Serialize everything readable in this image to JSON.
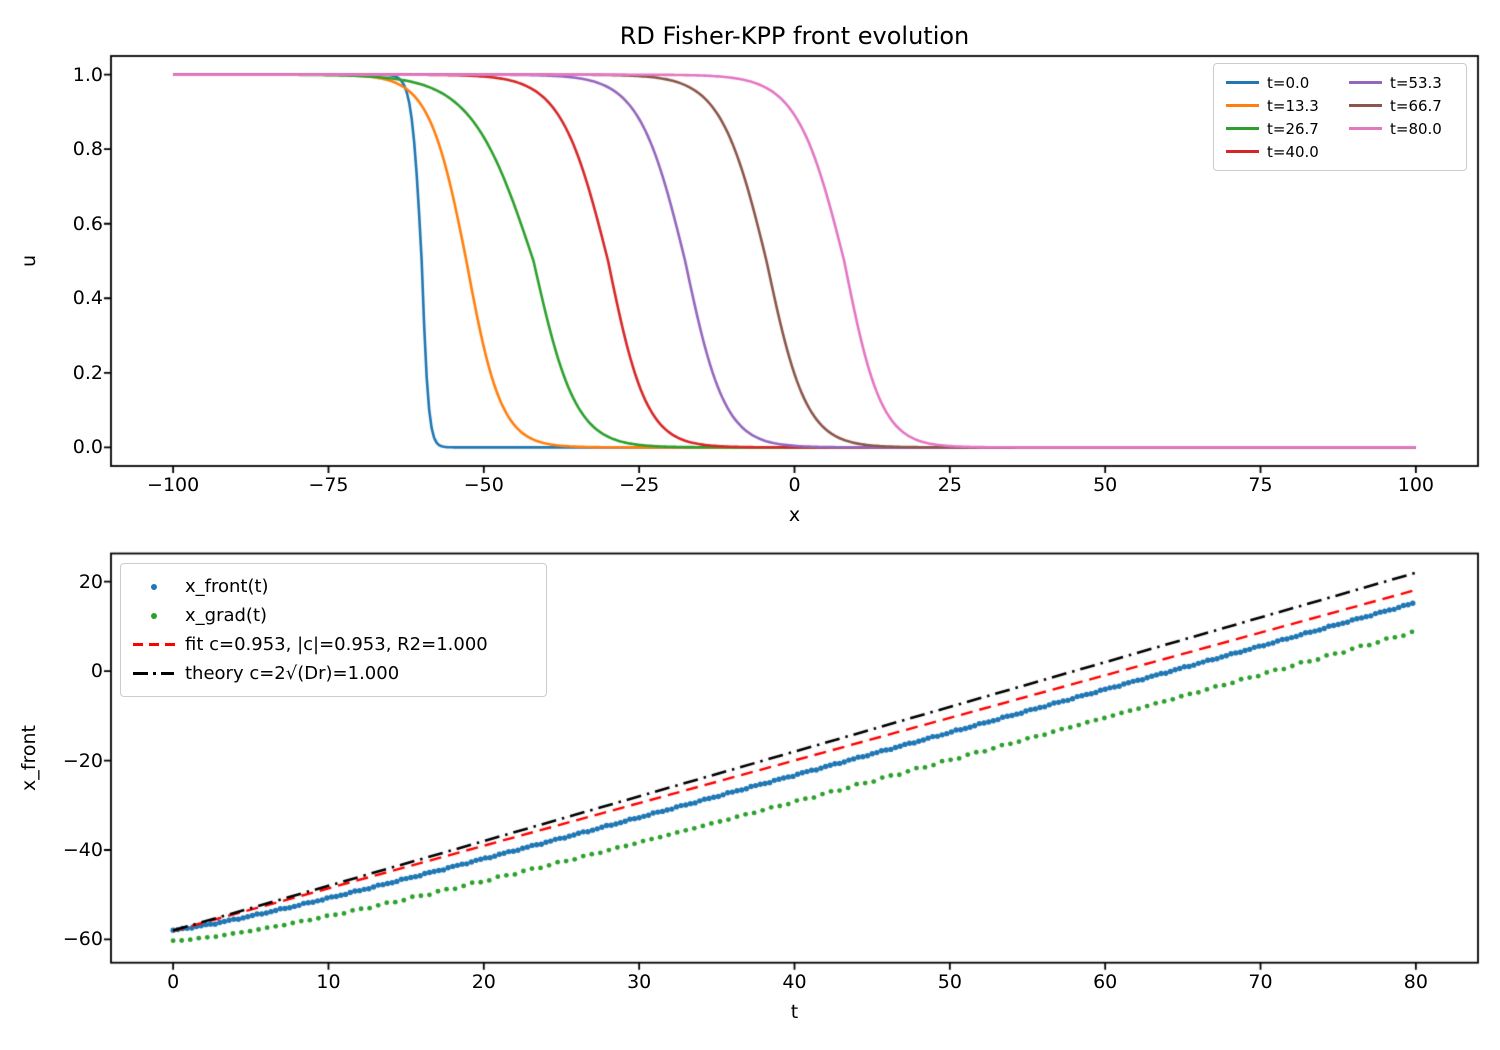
{
  "figure": {
    "background": "#ffffff"
  },
  "chart_data": [
    {
      "type": "line",
      "title": "RD Fisher-KPP front evolution",
      "xlabel": "x",
      "ylabel": "u",
      "xlim": [
        -110,
        110
      ],
      "ylim": [
        -0.05,
        1.05
      ],
      "grid": false,
      "legend_position": "upper right",
      "legend_columns": 2,
      "x_domain": [
        -100,
        100
      ],
      "xtick_values": [
        -100,
        -75,
        -50,
        -25,
        0,
        25,
        50,
        75,
        100
      ],
      "xtick_labels": [
        "−100",
        "−75",
        "−50",
        "−25",
        "0",
        "25",
        "50",
        "75",
        "100"
      ],
      "ytick_values": [
        0.0,
        0.2,
        0.4,
        0.6,
        0.8,
        1.0
      ],
      "ytick_labels": [
        "0.0",
        "0.2",
        "0.4",
        "0.6",
        "0.8",
        "1.0"
      ],
      "curve_model": "u(x) = 1/(1+exp((x-front_center)/width)), width_left used for u>0.5 side, width_right for u<0.5 side",
      "series": [
        {
          "label": "t=0.0",
          "color": "#1f77b4",
          "front_center": -60.0,
          "width_left": 0.8,
          "width_right": 0.55
        },
        {
          "label": "t=13.3",
          "color": "#ff7f0e",
          "front_center": -52.8,
          "width_left": 3.0,
          "width_right": 2.8
        },
        {
          "label": "t=26.7",
          "color": "#2ca02c",
          "front_center": -42.0,
          "width_left": 5.0,
          "width_right": 3.4
        },
        {
          "label": "t=40.0",
          "color": "#d62728",
          "front_center": -30.0,
          "width_left": 3.8,
          "width_right": 3.1
        },
        {
          "label": "t=53.3",
          "color": "#9467bd",
          "front_center": -17.6,
          "width_left": 3.7,
          "width_right": 3.2
        },
        {
          "label": "t=66.7",
          "color": "#8c564b",
          "front_center": -4.5,
          "width_left": 3.7,
          "width_right": 3.2
        },
        {
          "label": "t=80.0",
          "color": "#e377c2",
          "front_center": 8.0,
          "width_left": 3.8,
          "width_right": 3.0
        }
      ]
    },
    {
      "type": "scatter",
      "xlabel": "t",
      "ylabel": "x_front",
      "xlim": [
        -4,
        84
      ],
      "ylim": [
        -65.2,
        26.3
      ],
      "grid": false,
      "legend_position": "upper left",
      "xtick_values": [
        0,
        10,
        20,
        30,
        40,
        50,
        60,
        70,
        80
      ],
      "xtick_labels": [
        "0",
        "10",
        "20",
        "30",
        "40",
        "50",
        "60",
        "70",
        "80"
      ],
      "ytick_values": [
        20,
        0,
        -20,
        -40,
        -60
      ],
      "ytick_labels": [
        "20",
        "0",
        "−20",
        "−40",
        "−60"
      ],
      "series": [
        {
          "label": "x_front(t)",
          "color": "#1f77b4",
          "style": "scatter-dots",
          "marker_radius": 2.7,
          "points": [
            [
              0,
              -58.0
            ],
            [
              2.5,
              -56.57
            ],
            [
              5,
              -54.78
            ],
            [
              7.5,
              -52.82
            ],
            [
              10,
              -50.76
            ],
            [
              12.5,
              -48.62
            ],
            [
              15,
              -46.43
            ],
            [
              17.5,
              -44.2
            ],
            [
              20,
              -41.94
            ],
            [
              22.5,
              -39.65
            ],
            [
              25,
              -37.36
            ],
            [
              27.5,
              -35.05
            ],
            [
              30,
              -32.71
            ],
            [
              32.5,
              -30.37
            ],
            [
              35,
              -28.01
            ],
            [
              37.5,
              -25.64
            ],
            [
              40,
              -23.28
            ],
            [
              42.5,
              -20.9
            ],
            [
              45,
              -18.51
            ],
            [
              47.5,
              -16.12
            ],
            [
              50,
              -13.73
            ],
            [
              52.5,
              -11.32
            ],
            [
              55,
              -8.91
            ],
            [
              57.5,
              -6.5
            ],
            [
              60,
              -4.1
            ],
            [
              62.5,
              -1.68
            ],
            [
              65,
              0.74
            ],
            [
              67.5,
              3.17
            ],
            [
              70,
              5.59
            ],
            [
              72.5,
              8.02
            ],
            [
              75,
              10.45
            ],
            [
              77.5,
              12.89
            ],
            [
              80,
              15.32
            ]
          ]
        },
        {
          "label": "x_grad(t)",
          "color": "#2ca02c",
          "style": "scatter-dots",
          "marker_radius": 2.4,
          "points": [
            [
              0,
              -60.4
            ],
            [
              2.5,
              -59.45
            ],
            [
              5,
              -58.09
            ],
            [
              7.5,
              -56.5
            ],
            [
              10,
              -54.77
            ],
            [
              12.5,
              -52.93
            ],
            [
              15,
              -50.99
            ],
            [
              17.5,
              -48.99
            ],
            [
              20,
              -46.93
            ],
            [
              22.5,
              -44.82
            ],
            [
              25,
              -42.69
            ],
            [
              27.5,
              -40.51
            ],
            [
              30,
              -38.3
            ],
            [
              32.5,
              -36.06
            ],
            [
              35,
              -33.8
            ],
            [
              37.5,
              -31.51
            ],
            [
              40,
              -29.23
            ],
            [
              42.5,
              -26.91
            ],
            [
              45,
              -24.58
            ],
            [
              47.5,
              -22.24
            ],
            [
              50,
              -19.89
            ],
            [
              52.5,
              -17.52
            ],
            [
              55,
              -15.15
            ],
            [
              57.5,
              -12.77
            ],
            [
              60,
              -10.4
            ],
            [
              62.5,
              -8.0
            ],
            [
              65,
              -5.6
            ],
            [
              67.5,
              -3.19
            ],
            [
              70,
              -0.79
            ],
            [
              72.5,
              1.63
            ],
            [
              75,
              4.04
            ],
            [
              77.5,
              6.47
            ],
            [
              80,
              8.89
            ]
          ]
        },
        {
          "label": "fit c=0.953, |c|=0.953, R2=1.000",
          "color": "#ff0000",
          "style": "dashed-line",
          "slope": 0.953,
          "intercept": -58.1,
          "t_range": [
            0,
            80
          ]
        },
        {
          "label": "theory c=2√(Dr)=1.000",
          "color": "#000000",
          "style": "dashdot-line",
          "slope": 1.0,
          "intercept": -58.0,
          "t_range": [
            0,
            80
          ]
        }
      ]
    }
  ]
}
